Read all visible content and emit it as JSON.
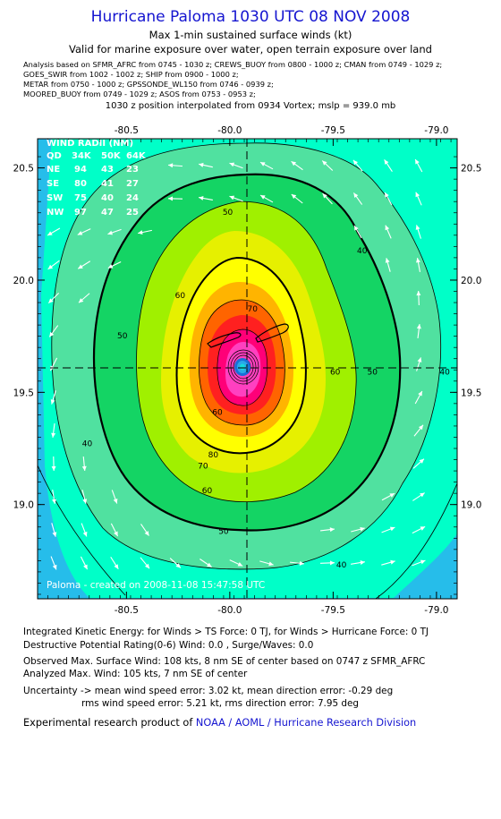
{
  "header": {
    "title": "Hurricane Paloma 1030 UTC 08 NOV 2008",
    "subtitle1": "Max 1-min sustained surface winds (kt)",
    "subtitle2": "Valid for marine exposure over water, open terrain exposure over land",
    "analysis_lines": [
      "Analysis based on  SFMR_AFRC from 0745 - 1030 z;  CREWS_BUOY from 0800 - 1000 z;  CMAN from 0749 - 1029 z;",
      "GOES_SWIR from 1002 - 1002 z;  SHIP from 0900 - 1000 z;",
      "METAR from 0750 - 1000 z;  GPSSONDE_WL150 from 0746 - 0939 z;",
      "MOORED_BUOY from 0749 - 1029 z;  ASOS from 0753 - 0953 z;"
    ],
    "position_line": "1030 z position interpolated from 0934 Vortex; mslp = 939.0 mb"
  },
  "wind_radii": {
    "title": "WIND RADII (NM)",
    "header": [
      "QD",
      "34K",
      "50K",
      "64K"
    ],
    "rows": [
      [
        "NE",
        "94",
        "43",
        "23"
      ],
      [
        "SE",
        "80",
        "41",
        "27"
      ],
      [
        "SW",
        "75",
        "40",
        "24"
      ],
      [
        "NW",
        "97",
        "47",
        "25"
      ]
    ]
  },
  "credit": "Paloma - created on 2008-11-08 15:47:58 UTC",
  "chart_data": {
    "type": "contour",
    "xlim": [
      -80.93,
      -78.9
    ],
    "ylim": [
      18.58,
      20.63
    ],
    "x_ticks": [
      "-80.5",
      "-80.0",
      "-79.5",
      "-79.0"
    ],
    "x_tick_values": [
      -80.5,
      -80.0,
      -79.5,
      -79.0
    ],
    "y_ticks": [
      "20.5",
      "20.0",
      "19.5",
      "19.0"
    ],
    "y_tick_values": [
      20.5,
      20.0,
      19.5,
      19.0
    ],
    "center": {
      "lon": -79.93,
      "lat": 19.56
    },
    "contour_labels": [
      {
        "text": "40",
        "lon": -79.36,
        "lat": 20.12
      },
      {
        "text": "50",
        "lon": -80.01,
        "lat": 20.29
      },
      {
        "text": "60",
        "lon": -80.24,
        "lat": 19.92
      },
      {
        "text": "70",
        "lon": -79.89,
        "lat": 19.86
      },
      {
        "text": "50",
        "lon": -80.52,
        "lat": 19.74
      },
      {
        "text": "60",
        "lon": -79.49,
        "lat": 19.58
      },
      {
        "text": "50",
        "lon": -79.31,
        "lat": 19.58
      },
      {
        "text": "40",
        "lon": -78.96,
        "lat": 19.58
      },
      {
        "text": "60",
        "lon": -80.06,
        "lat": 19.4
      },
      {
        "text": "80",
        "lon": -80.08,
        "lat": 19.21
      },
      {
        "text": "70",
        "lon": -80.13,
        "lat": 19.16
      },
      {
        "text": "60",
        "lon": -80.11,
        "lat": 19.05
      },
      {
        "text": "40",
        "lon": -80.69,
        "lat": 19.26
      },
      {
        "text": "50",
        "lon": -80.03,
        "lat": 18.87
      },
      {
        "text": "40",
        "lon": -79.46,
        "lat": 18.72
      }
    ],
    "levels": [
      40,
      50,
      60,
      70,
      80
    ]
  },
  "ike": "Integrated Kinetic Energy:  for Winds > TS Force: 0 TJ,  for Winds > Hurricane Force: 0 TJ",
  "dpr": "Destructive Potential Rating(0-6)   Wind: 0.0 , Surge/Waves: 0.0",
  "observed_max": "Observed Max. Surface Wind: 108 kts, 8 nm SE of center based on 0747 z SFMR_AFRC",
  "analyzed_max": "Analyzed Max. Wind: 105 kts, 7 nm SE of center",
  "uncertainty1": "Uncertainty -> mean wind speed error: 3.02 kt,   mean direction error:  -0.29 deg",
  "uncertainty2": "rms wind speed error: 5.21 kt,   rms direction error: 7.95 deg",
  "product_prefix": "Experimental research product of ",
  "product_org": "NOAA / AOML / Hurricane Research Division",
  "colors": {
    "bg_outer": "#26bdea",
    "band_30": "#14dcdc",
    "band_34": "#00ffc8",
    "band_40": "#50e1a0",
    "band_50": "#14d464",
    "band_60": "#a0f000",
    "band_65": "#e6f000",
    "band_70": "#ffff00",
    "band_75": "#ffb400",
    "band_80": "#ff6400",
    "band_85": "#ff2020",
    "band_90": "#ff0078",
    "band_95": "#ff40c0",
    "eye": "#1870d8",
    "title": "#1515d0"
  }
}
